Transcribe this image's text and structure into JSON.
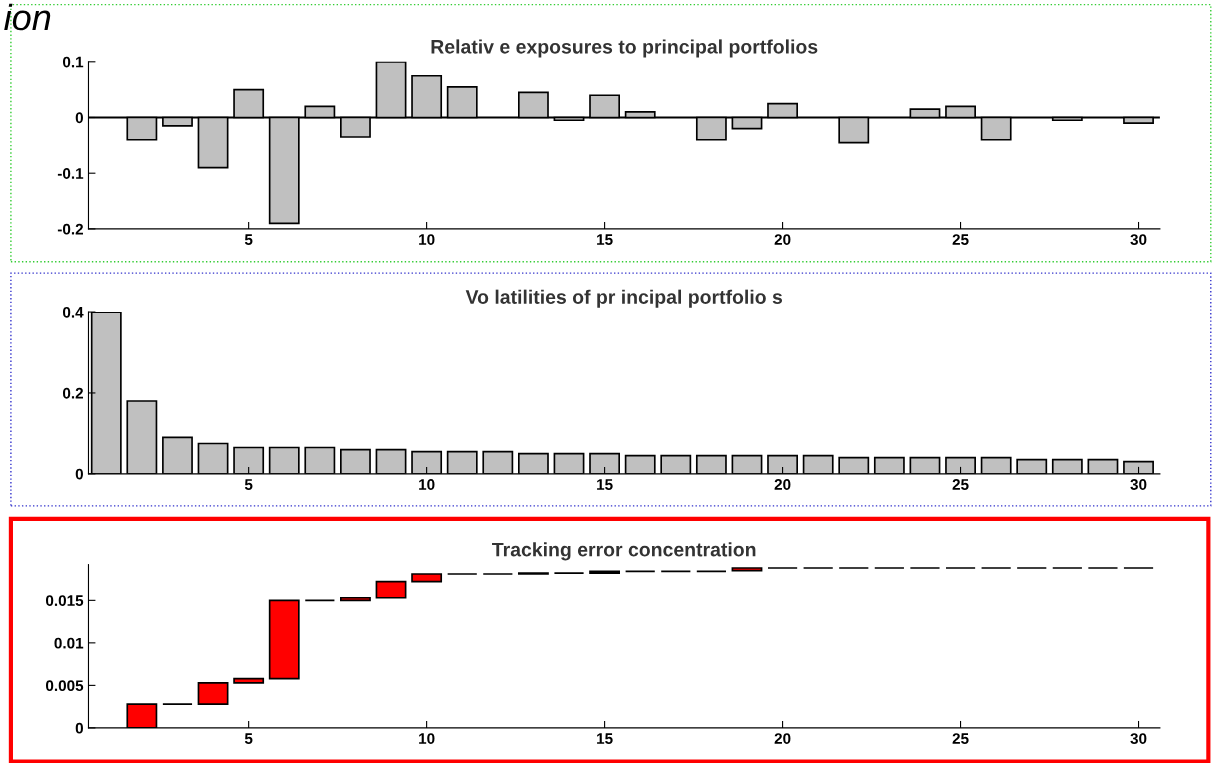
{
  "chart_data": [
    {
      "type": "bar",
      "title": "Relativ e exposures to principal portfolios",
      "annotations": [
        "ion"
      ],
      "x": [
        1,
        2,
        3,
        4,
        5,
        6,
        7,
        8,
        9,
        10,
        11,
        12,
        13,
        14,
        15,
        16,
        17,
        18,
        19,
        20,
        21,
        22,
        23,
        24,
        25,
        26,
        27,
        28,
        29,
        30
      ],
      "series": [
        {
          "color": "#c0c0c0",
          "values": [
            0,
            -0.04,
            -0.015,
            -0.09,
            0.05,
            -0.19,
            0.02,
            -0.035,
            0.1,
            0.075,
            0.055,
            0,
            0.045,
            -0.005,
            0.04,
            0.01,
            0,
            -0.04,
            -0.02,
            0.025,
            0,
            -0.045,
            0,
            0.015,
            0.02,
            -0.04,
            0,
            -0.005,
            0,
            -0.01
          ]
        }
      ],
      "ref_lines": [
        {
          "axis": "y",
          "value": 0,
          "color": "#000000"
        }
      ],
      "xlim": [
        0.5,
        30.6
      ],
      "xticks": [
        5,
        10,
        15,
        20,
        25,
        30
      ],
      "ylim": [
        -0.2,
        0.1
      ],
      "yticks": [
        {
          "value": -0.2,
          "label": "-0.2"
        },
        {
          "value": -0.1,
          "label": "-0.1"
        },
        0,
        0.1
      ],
      "grid": false,
      "legend": false
    },
    {
      "type": "bar",
      "title": "Vo latilities of pr incipal portfolio s",
      "x": [
        1,
        2,
        3,
        4,
        5,
        6,
        7,
        8,
        9,
        10,
        11,
        12,
        13,
        14,
        15,
        16,
        17,
        18,
        19,
        20,
        21,
        22,
        23,
        24,
        25,
        26,
        27,
        28,
        29,
        30
      ],
      "series": [
        {
          "color": "#c0c0c0",
          "values": [
            0.4,
            0.18,
            0.09,
            0.075,
            0.065,
            0.065,
            0.065,
            0.06,
            0.06,
            0.055,
            0.055,
            0.055,
            0.05,
            0.05,
            0.05,
            0.045,
            0.045,
            0.045,
            0.045,
            0.045,
            0.045,
            0.04,
            0.04,
            0.04,
            0.04,
            0.04,
            0.035,
            0.035,
            0.035,
            0.03
          ]
        }
      ],
      "xlim": [
        0.5,
        30.6
      ],
      "xticks": [
        5,
        10,
        15,
        20,
        25,
        30
      ],
      "ylim": [
        0,
        0.4
      ],
      "yticks": [
        0,
        0.2,
        0.4
      ],
      "grid": false,
      "legend": false
    },
    {
      "type": "bar",
      "title": "Tracking error concentration",
      "x": [
        2,
        3,
        4,
        5,
        6,
        7,
        8,
        9,
        10,
        11,
        12,
        13,
        14,
        15,
        16,
        17,
        18,
        19,
        20,
        21,
        22,
        23,
        24,
        25,
        26,
        27,
        28,
        29,
        30
      ],
      "series": [
        {
          "colors": [
            "#ff0000",
            "#000000",
            "#ff0000",
            "#ff0000",
            "#ff0000",
            "#000000",
            "#ff0000",
            "#ff0000",
            "#ff0000",
            "#000000",
            "#000000",
            "#ff0000",
            "#000000",
            "#ff0000",
            "#000000",
            "#000000",
            "#000000",
            "#ff0000",
            "#000000",
            "#000000",
            "#000000",
            "#000000",
            "#000000",
            "#000000",
            "#000000",
            "#000000",
            "#000000",
            "#000000",
            "#000000"
          ],
          "values": [
            0.0028,
            0,
            0.0025,
            0.0005,
            0.0092,
            0,
            0.0003,
            0.0019,
            0.0009,
            0,
            0,
            0.0001,
            0,
            0.0002,
            0,
            0,
            0,
            0.0003,
            0,
            0,
            0,
            0,
            0,
            0,
            0,
            0,
            0,
            0,
            0
          ],
          "base": [
            0,
            0.0028,
            0.0028,
            0.0053,
            0.0058,
            0.015,
            0.015,
            0.0153,
            0.0172,
            0.0181,
            0.0181,
            0.0181,
            0.0182,
            0.0182,
            0.0184,
            0.0184,
            0.0184,
            0.0185,
            0.0188,
            0.0188,
            0.0188,
            0.0188,
            0.0188,
            0.0188,
            0.0188,
            0.0188,
            0.0188,
            0.0188,
            0.0188
          ]
        }
      ],
      "xlim": [
        0.5,
        30.6
      ],
      "xticks": [
        5,
        10,
        15,
        20,
        25,
        30
      ],
      "ylim": [
        0,
        0.0192
      ],
      "yticks": [
        0,
        0.005,
        0.01,
        0.015
      ],
      "grid": false,
      "legend": false
    }
  ]
}
